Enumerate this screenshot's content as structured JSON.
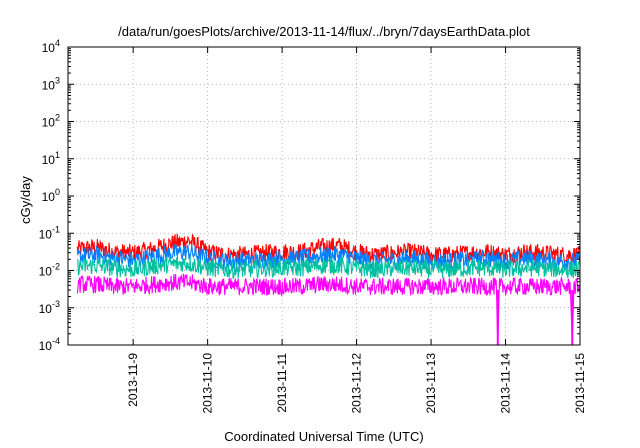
{
  "chart_data": {
    "type": "line",
    "title": "/data/run/goesPlots/archive/2013-11-14/flux/../bryn/7daysEarthData.plot",
    "xlabel": "Coordinated Universal Time (UTC)",
    "ylabel": "cGy/day",
    "yscale": "log",
    "ylim": [
      0.0001,
      10000
    ],
    "y_ticks": [
      {
        "value": 0.0001,
        "base": "10",
        "exp": "-4"
      },
      {
        "value": 0.001,
        "base": "10",
        "exp": "-3"
      },
      {
        "value": 0.01,
        "base": "10",
        "exp": "-2"
      },
      {
        "value": 0.1,
        "base": "10",
        "exp": "-1"
      },
      {
        "value": 1,
        "base": "10",
        "exp": "0"
      },
      {
        "value": 10,
        "base": "10",
        "exp": "1"
      },
      {
        "value": 100,
        "base": "10",
        "exp": "2"
      },
      {
        "value": 1000,
        "base": "10",
        "exp": "3"
      },
      {
        "value": 10000,
        "base": "10",
        "exp": "4"
      }
    ],
    "xlim": [
      "2013-11-08 03:00",
      "2013-11-15 00:00"
    ],
    "x_ticks": [
      "2013-11-9",
      "2013-11-10",
      "2013-11-11",
      "2013-11-12",
      "2013-11-13",
      "2013-11-14",
      "2013-11-15"
    ],
    "grid": true,
    "series": [
      {
        "color": "#ff0000",
        "points": [
          [
            "2013-11-08 06:00",
            0.035
          ],
          [
            "2013-11-08 12:00",
            0.04
          ],
          [
            "2013-11-08 18:00",
            0.03
          ],
          [
            "2013-11-09 00:00",
            0.028
          ],
          [
            "2013-11-09 06:00",
            0.035
          ],
          [
            "2013-11-09 12:00",
            0.05
          ],
          [
            "2013-11-09 18:00",
            0.06
          ],
          [
            "2013-11-10 00:00",
            0.03
          ],
          [
            "2013-11-10 06:00",
            0.025
          ],
          [
            "2013-11-10 12:00",
            0.025
          ],
          [
            "2013-11-10 18:00",
            0.028
          ],
          [
            "2013-11-11 00:00",
            0.03
          ],
          [
            "2013-11-11 06:00",
            0.03
          ],
          [
            "2013-11-11 12:00",
            0.04
          ],
          [
            "2013-11-11 18:00",
            0.045
          ],
          [
            "2013-11-12 00:00",
            0.03
          ],
          [
            "2013-11-12 06:00",
            0.025
          ],
          [
            "2013-11-12 12:00",
            0.028
          ],
          [
            "2013-11-12 18:00",
            0.03
          ],
          [
            "2013-11-13 00:00",
            0.025
          ],
          [
            "2013-11-13 06:00",
            0.025
          ],
          [
            "2013-11-13 12:00",
            0.028
          ],
          [
            "2013-11-13 18:00",
            0.03
          ],
          [
            "2013-11-14 00:00",
            0.025
          ],
          [
            "2013-11-14 06:00",
            0.03
          ],
          [
            "2013-11-14 12:00",
            0.028
          ],
          [
            "2013-11-14 18:00",
            0.025
          ],
          [
            "2013-11-15 00:00",
            0.025
          ]
        ]
      },
      {
        "color": "#0080ff",
        "points": [
          [
            "2013-11-08 06:00",
            0.022
          ],
          [
            "2013-11-08 12:00",
            0.025
          ],
          [
            "2013-11-08 18:00",
            0.02
          ],
          [
            "2013-11-09 00:00",
            0.018
          ],
          [
            "2013-11-09 06:00",
            0.022
          ],
          [
            "2013-11-09 12:00",
            0.028
          ],
          [
            "2013-11-09 18:00",
            0.03
          ],
          [
            "2013-11-10 00:00",
            0.02
          ],
          [
            "2013-11-10 06:00",
            0.017
          ],
          [
            "2013-11-10 12:00",
            0.017
          ],
          [
            "2013-11-10 18:00",
            0.018
          ],
          [
            "2013-11-11 00:00",
            0.02
          ],
          [
            "2013-11-11 06:00",
            0.02
          ],
          [
            "2013-11-11 12:00",
            0.024
          ],
          [
            "2013-11-11 18:00",
            0.025
          ],
          [
            "2013-11-12 00:00",
            0.02
          ],
          [
            "2013-11-12 06:00",
            0.017
          ],
          [
            "2013-11-12 12:00",
            0.018
          ],
          [
            "2013-11-12 18:00",
            0.02
          ],
          [
            "2013-11-13 00:00",
            0.017
          ],
          [
            "2013-11-13 06:00",
            0.017
          ],
          [
            "2013-11-13 12:00",
            0.018
          ],
          [
            "2013-11-13 18:00",
            0.02
          ],
          [
            "2013-11-14 00:00",
            0.017
          ],
          [
            "2013-11-14 06:00",
            0.02
          ],
          [
            "2013-11-14 12:00",
            0.018
          ],
          [
            "2013-11-14 18:00",
            0.017
          ],
          [
            "2013-11-15 00:00",
            0.017
          ]
        ]
      },
      {
        "color": "#00c0a0",
        "points": [
          [
            "2013-11-08 06:00",
            0.012
          ],
          [
            "2013-11-08 12:00",
            0.013
          ],
          [
            "2013-11-08 18:00",
            0.011
          ],
          [
            "2013-11-09 00:00",
            0.01
          ],
          [
            "2013-11-09 06:00",
            0.012
          ],
          [
            "2013-11-09 12:00",
            0.014
          ],
          [
            "2013-11-09 18:00",
            0.015
          ],
          [
            "2013-11-10 00:00",
            0.011
          ],
          [
            "2013-11-10 06:00",
            0.01
          ],
          [
            "2013-11-10 12:00",
            0.01
          ],
          [
            "2013-11-10 18:00",
            0.011
          ],
          [
            "2013-11-11 00:00",
            0.011
          ],
          [
            "2013-11-11 06:00",
            0.011
          ],
          [
            "2013-11-11 12:00",
            0.013
          ],
          [
            "2013-11-11 18:00",
            0.013
          ],
          [
            "2013-11-12 00:00",
            0.011
          ],
          [
            "2013-11-12 06:00",
            0.01
          ],
          [
            "2013-11-12 12:00",
            0.011
          ],
          [
            "2013-11-12 18:00",
            0.011
          ],
          [
            "2013-11-13 00:00",
            0.01
          ],
          [
            "2013-11-13 06:00",
            0.01
          ],
          [
            "2013-11-13 12:00",
            0.011
          ],
          [
            "2013-11-13 18:00",
            0.011
          ],
          [
            "2013-11-14 00:00",
            0.01
          ],
          [
            "2013-11-14 06:00",
            0.011
          ],
          [
            "2013-11-14 12:00",
            0.011
          ],
          [
            "2013-11-14 18:00",
            0.01
          ],
          [
            "2013-11-15 00:00",
            0.01
          ]
        ]
      },
      {
        "color": "#ff00ff",
        "points": [
          [
            "2013-11-08 06:00",
            0.004
          ],
          [
            "2013-11-08 12:00",
            0.004
          ],
          [
            "2013-11-08 18:00",
            0.0035
          ],
          [
            "2013-11-09 00:00",
            0.0035
          ],
          [
            "2013-11-09 06:00",
            0.004
          ],
          [
            "2013-11-09 12:00",
            0.0045
          ],
          [
            "2013-11-09 18:00",
            0.0045
          ],
          [
            "2013-11-10 00:00",
            0.0035
          ],
          [
            "2013-11-10 06:00",
            0.0035
          ],
          [
            "2013-11-10 12:00",
            0.0035
          ],
          [
            "2013-11-10 18:00",
            0.0035
          ],
          [
            "2013-11-11 00:00",
            0.0035
          ],
          [
            "2013-11-11 06:00",
            0.0035
          ],
          [
            "2013-11-11 12:00",
            0.004
          ],
          [
            "2013-11-11 18:00",
            0.004
          ],
          [
            "2013-11-12 00:00",
            0.0035
          ],
          [
            "2013-11-12 06:00",
            0.0035
          ],
          [
            "2013-11-12 12:00",
            0.0035
          ],
          [
            "2013-11-12 18:00",
            0.0035
          ],
          [
            "2013-11-13 00:00",
            0.0035
          ],
          [
            "2013-11-13 06:00",
            0.0035
          ],
          [
            "2013-11-13 12:00",
            0.0035
          ],
          [
            "2013-11-13 18:00",
            0.0035
          ],
          [
            "2013-11-13 21:00",
            0.0035
          ],
          [
            "2013-11-13 21:30",
            0.0001
          ],
          [
            "2013-11-13 22:00",
            0.0035
          ],
          [
            "2013-11-14 00:00",
            0.0035
          ],
          [
            "2013-11-14 06:00",
            0.0035
          ],
          [
            "2013-11-14 12:00",
            0.0035
          ],
          [
            "2013-11-14 18:00",
            0.0035
          ],
          [
            "2013-11-14 21:00",
            0.0035
          ],
          [
            "2013-11-14 21:30",
            0.0001
          ],
          [
            "2013-11-14 22:00",
            0.0035
          ],
          [
            "2013-11-15 00:00",
            0.0035
          ]
        ]
      }
    ]
  }
}
